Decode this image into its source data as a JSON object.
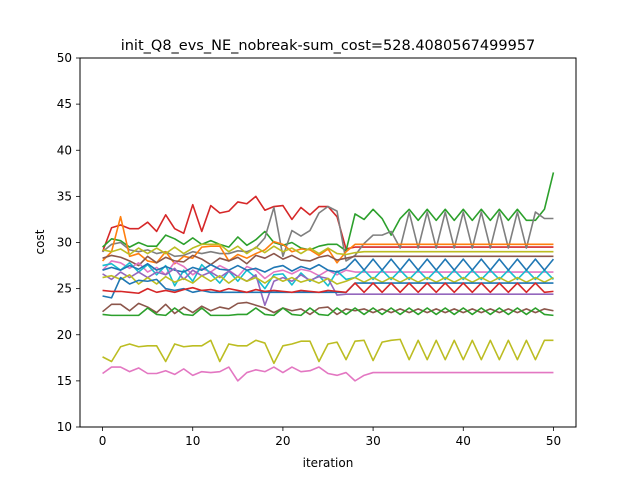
{
  "chart_data": {
    "type": "line",
    "title": "init_Q8_evs_NE_nobreak-sum_cost=528.4080567499957",
    "xlabel": "iteration",
    "ylabel": "cost",
    "xlim": [
      -2.5,
      52.5
    ],
    "ylim": [
      10,
      50
    ],
    "xticks": [
      0,
      10,
      20,
      30,
      40,
      50
    ],
    "yticks": [
      10,
      15,
      20,
      25,
      30,
      35,
      40,
      45,
      50
    ],
    "grid": false,
    "legend": "none",
    "series": [
      {
        "color": "#d62728",
        "values": [
          29.0,
          31.6,
          31.9,
          31.5,
          31.5,
          32.2,
          31.2,
          33.0,
          31.5,
          31.0,
          34.1,
          31.2,
          34.0,
          33.2,
          33.4,
          34.4,
          34.2,
          35.0,
          33.5,
          33.9,
          34.0,
          32.5,
          33.8,
          33.0,
          33.9,
          33.9,
          32.8,
          29.3,
          29.5,
          29.5,
          29.5,
          29.5,
          29.5,
          29.5,
          29.5,
          29.5,
          29.5,
          29.5,
          29.5,
          29.5,
          29.5,
          29.5,
          29.5,
          29.5,
          29.5,
          29.5,
          29.5,
          29.5,
          29.5,
          29.5,
          29.5
        ]
      },
      {
        "color": "#2ca02c",
        "values": [
          29.5,
          30.4,
          30.2,
          29.5,
          30.0,
          29.6,
          29.6,
          30.8,
          30.4,
          29.8,
          30.5,
          29.8,
          30.2,
          29.8,
          29.5,
          30.6,
          29.7,
          30.3,
          31.2,
          30.0,
          29.7,
          30.0,
          29.4,
          29.2,
          29.6,
          29.8,
          29.8,
          29.1,
          33.1,
          32.5,
          33.6,
          32.6,
          30.8,
          32.6,
          33.6,
          32.4,
          33.6,
          32.4,
          33.6,
          32.4,
          33.6,
          32.4,
          33.6,
          32.4,
          33.6,
          32.4,
          33.6,
          32.4,
          32.4,
          33.6,
          37.6
        ]
      },
      {
        "color": "#7f7f7f",
        "values": [
          29.0,
          29.8,
          30.0,
          29.2,
          29.0,
          29.2,
          28.8,
          29.0,
          28.5,
          28.6,
          29.0,
          28.8,
          29.0,
          28.8,
          28.8,
          29.1,
          29.0,
          29.4,
          30.5,
          33.8,
          28.5,
          31.3,
          30.7,
          31.3,
          33.2,
          33.9,
          33.4,
          28.0,
          28.6,
          29.9,
          30.8,
          30.8,
          31.2,
          29.4,
          33.3,
          29.4,
          33.3,
          29.4,
          33.3,
          29.4,
          33.3,
          29.4,
          33.3,
          29.4,
          33.3,
          29.4,
          33.3,
          29.4,
          33.3,
          32.6,
          32.6
        ]
      },
      {
        "color": "#ff7f0e",
        "values": [
          28.0,
          29.0,
          32.8,
          28.5,
          28.8,
          28.0,
          27.8,
          29.0,
          27.7,
          28.5,
          28.3,
          29.5,
          29.6,
          29.6,
          28.0,
          28.7,
          28.3,
          28.8,
          29.2,
          30.1,
          29.8,
          29.0,
          29.3,
          29.2,
          28.6,
          29.3,
          27.8,
          29.0,
          29.8,
          29.8,
          29.8,
          29.8,
          29.8,
          29.8,
          29.8,
          29.8,
          29.8,
          29.8,
          29.8,
          29.8,
          29.8,
          29.8,
          29.8,
          29.8,
          29.8,
          29.8,
          29.8,
          29.8,
          29.8,
          29.8,
          29.8
        ]
      },
      {
        "color": "#bcbd22",
        "values": [
          29.2,
          29.0,
          29.3,
          28.7,
          29.4,
          28.8,
          29.4,
          28.8,
          29.5,
          28.8,
          29.4,
          29.8,
          29.8,
          29.8,
          29.0,
          29.6,
          28.8,
          29.5,
          28.9,
          29.6,
          29.0,
          29.4,
          28.8,
          29.4,
          28.8,
          29.4,
          28.8,
          28.7,
          28.9,
          29.0,
          29.0,
          29.0,
          29.0,
          29.0,
          29.0,
          29.0,
          29.0,
          29.0,
          29.0,
          29.0,
          29.0,
          29.0,
          29.0,
          29.0,
          29.0,
          29.0,
          29.0,
          29.0,
          29.0,
          29.0,
          29.0
        ]
      },
      {
        "color": "#8c564b",
        "values": [
          28.3,
          28.6,
          28.4,
          28.0,
          27.5,
          28.5,
          27.8,
          28.4,
          28.0,
          27.9,
          28.6,
          28.2,
          27.6,
          28.3,
          28.0,
          28.4,
          27.7,
          28.6,
          28.3,
          28.8,
          28.2,
          28.6,
          28.1,
          28.0,
          28.4,
          28.6,
          28.1,
          28.3,
          28.5,
          28.5,
          28.5,
          28.5,
          28.5,
          28.5,
          28.5,
          28.5,
          28.5,
          28.5,
          28.5,
          28.5,
          28.5,
          28.5,
          28.5,
          28.5,
          28.5,
          28.5,
          28.5,
          28.5,
          28.5,
          28.5,
          28.5
        ]
      },
      {
        "color": "#e377c2",
        "values": [
          27.0,
          28.0,
          27.8,
          27.2,
          27.8,
          26.8,
          27.3,
          26.5,
          27.9,
          27.4,
          26.5,
          27.2,
          26.8,
          27.5,
          27.0,
          26.3,
          27.4,
          27.0,
          26.1,
          26.8,
          27.0,
          26.6,
          27.1,
          26.9,
          26.4,
          27.0,
          26.5,
          27.0,
          26.8,
          26.8,
          26.8,
          26.8,
          26.8,
          26.8,
          26.8,
          26.8,
          26.8,
          26.8,
          26.8,
          26.8,
          26.8,
          26.8,
          26.8,
          26.8,
          26.8,
          26.8,
          26.8,
          26.8,
          26.8,
          26.8,
          26.8
        ]
      },
      {
        "color": "#17becf",
        "values": [
          27.5,
          27.7,
          27.0,
          27.8,
          26.8,
          27.6,
          26.5,
          27.5,
          25.3,
          27.0,
          25.8,
          27.6,
          26.6,
          25.6,
          26.9,
          25.8,
          27.0,
          26.2,
          25.0,
          26.5,
          26.6,
          25.4,
          26.7,
          25.8,
          26.4,
          25.3,
          26.9,
          26.0,
          26.2,
          27.0,
          26.0,
          27.0,
          26.0,
          27.0,
          26.0,
          27.0,
          26.0,
          27.0,
          26.0,
          27.0,
          26.0,
          27.0,
          26.0,
          27.0,
          26.0,
          27.0,
          26.0,
          27.0,
          26.0,
          27.0,
          26.0
        ]
      },
      {
        "color": "#1f77b4",
        "values": [
          27.0,
          27.3,
          27.0,
          27.5,
          27.1,
          27.7,
          27.0,
          27.4,
          27.0,
          26.8,
          27.3,
          27.0,
          27.6,
          27.1,
          27.0,
          27.5,
          27.0,
          27.2,
          26.8,
          27.3,
          27.5,
          26.9,
          27.4,
          27.1,
          27.6,
          27.0,
          26.8,
          27.2,
          28.2,
          27.0,
          28.2,
          27.0,
          28.2,
          27.0,
          28.2,
          27.0,
          28.2,
          27.0,
          28.2,
          27.0,
          28.2,
          27.0,
          28.2,
          27.0,
          28.2,
          27.0,
          28.2,
          27.0,
          28.2,
          27.0,
          28.2
        ]
      },
      {
        "color": "#9467bd",
        "values": [
          26.6,
          26.0,
          26.8,
          26.2,
          26.8,
          26.2,
          26.8,
          26.5,
          27.2,
          26.0,
          27.0,
          26.4,
          26.8,
          26.2,
          26.9,
          26.3,
          25.8,
          26.5,
          23.2,
          25.8,
          26.2,
          25.8,
          26.5,
          25.9,
          26.3,
          26.1,
          24.3,
          24.4,
          24.4,
          24.4,
          24.4,
          24.4,
          24.4,
          24.4,
          24.4,
          24.4,
          24.4,
          24.4,
          24.4,
          24.4,
          24.4,
          24.4,
          24.4,
          24.4,
          24.4,
          24.4,
          24.4,
          24.4,
          24.4,
          24.4,
          24.4
        ]
      },
      {
        "color": "#bcbd22",
        "values": [
          26.2,
          26.4,
          26.0,
          26.5,
          25.5,
          26.2,
          25.5,
          26.3,
          25.7,
          26.1,
          25.6,
          26.4,
          25.8,
          26.4,
          25.6,
          26.3,
          25.8,
          26.2,
          25.6,
          26.3,
          25.8,
          26.2,
          25.7,
          26.0,
          25.6,
          26.1,
          25.5,
          25.8,
          26.2,
          25.7,
          26.2,
          25.7,
          26.2,
          25.7,
          26.2,
          25.7,
          26.2,
          25.7,
          26.2,
          25.7,
          26.2,
          25.7,
          26.2,
          25.7,
          26.2,
          25.7,
          26.2,
          25.7,
          26.2,
          25.7,
          26.2
        ]
      },
      {
        "color": "#1f77b4",
        "values": [
          24.2,
          24.0,
          26.2,
          25.5,
          25.9,
          25.8,
          26.0,
          25.0,
          24.8,
          25.0,
          24.6,
          24.8,
          24.6,
          24.6,
          24.6,
          24.6,
          24.6,
          24.6,
          24.6,
          24.6,
          24.6,
          24.6,
          24.6,
          24.6,
          24.6,
          24.6,
          24.6,
          24.6,
          25.6,
          25.6,
          25.6,
          25.6,
          25.6,
          25.6,
          25.6,
          25.6,
          25.6,
          25.6,
          25.6,
          25.6,
          25.6,
          25.6,
          25.6,
          25.6,
          25.6,
          25.6,
          25.6,
          25.6,
          25.6,
          25.6,
          25.6
        ]
      },
      {
        "color": "#d62728",
        "values": [
          24.8,
          24.7,
          24.7,
          24.6,
          24.5,
          25.0,
          24.6,
          24.8,
          24.6,
          24.9,
          25.1,
          24.8,
          24.9,
          24.7,
          25.0,
          24.8,
          24.6,
          24.9,
          24.7,
          24.8,
          24.7,
          24.6,
          24.8,
          24.7,
          24.6,
          24.8,
          24.7,
          24.6,
          25.6,
          24.6,
          25.6,
          24.6,
          25.6,
          24.6,
          25.6,
          24.6,
          25.6,
          24.6,
          25.6,
          24.6,
          25.6,
          24.6,
          25.6,
          24.6,
          25.6,
          24.6,
          25.6,
          24.6,
          25.6,
          24.6,
          24.7
        ]
      },
      {
        "color": "#8c564b",
        "values": [
          22.5,
          23.3,
          23.3,
          22.6,
          23.4,
          23.0,
          22.4,
          23.3,
          22.3,
          23.0,
          22.4,
          23.1,
          22.6,
          23.0,
          22.8,
          23.4,
          23.5,
          23.2,
          22.9,
          22.4,
          22.9,
          22.6,
          22.8,
          22.2,
          22.9,
          23.0,
          22.2,
          22.8,
          22.6,
          22.8,
          22.4,
          22.8,
          22.4,
          22.8,
          22.4,
          22.8,
          22.4,
          22.8,
          22.4,
          22.8,
          22.4,
          22.8,
          22.4,
          22.8,
          22.4,
          22.8,
          22.4,
          22.8,
          22.4,
          22.8,
          22.6
        ]
      },
      {
        "color": "#2ca02c",
        "values": [
          22.2,
          22.1,
          22.1,
          22.1,
          22.1,
          22.9,
          22.2,
          22.1,
          22.9,
          22.2,
          22.1,
          22.9,
          22.1,
          22.1,
          22.1,
          22.2,
          22.2,
          22.9,
          22.2,
          22.1,
          22.9,
          22.2,
          22.1,
          22.9,
          22.2,
          22.1,
          22.9,
          22.2,
          22.9,
          22.2,
          22.9,
          22.2,
          22.9,
          22.2,
          22.9,
          22.2,
          22.9,
          22.2,
          22.9,
          22.2,
          22.9,
          22.2,
          22.9,
          22.2,
          22.9,
          22.2,
          22.9,
          22.2,
          22.9,
          22.2,
          22.1
        ]
      },
      {
        "color": "#bcbd22",
        "values": [
          17.6,
          17.1,
          18.7,
          19.0,
          18.7,
          18.8,
          18.8,
          17.1,
          19.0,
          18.7,
          18.8,
          18.8,
          19.4,
          17.1,
          19.0,
          18.8,
          18.8,
          19.4,
          19.1,
          16.9,
          18.8,
          19.0,
          19.3,
          19.3,
          17.1,
          19.0,
          19.2,
          17.3,
          19.3,
          19.4,
          17.2,
          19.2,
          19.4,
          19.5,
          17.3,
          19.4,
          17.3,
          19.4,
          17.3,
          19.4,
          17.3,
          19.4,
          17.3,
          19.4,
          17.3,
          19.4,
          17.3,
          19.4,
          17.3,
          19.4,
          19.4
        ]
      },
      {
        "color": "#e377c2",
        "values": [
          15.8,
          16.5,
          16.5,
          16.0,
          16.4,
          15.8,
          15.8,
          16.1,
          15.7,
          16.3,
          15.6,
          16.0,
          15.9,
          16.0,
          16.5,
          15.0,
          15.9,
          16.2,
          16.0,
          16.5,
          15.9,
          16.5,
          16.0,
          16.1,
          16.5,
          15.8,
          15.6,
          15.9,
          15.0,
          15.6,
          15.9,
          15.9,
          15.9,
          15.9,
          15.9,
          15.9,
          15.9,
          15.9,
          15.9,
          15.9,
          15.9,
          15.9,
          15.9,
          15.9,
          15.9,
          15.9,
          15.9,
          15.9,
          15.9,
          15.9,
          15.9
        ]
      }
    ]
  }
}
